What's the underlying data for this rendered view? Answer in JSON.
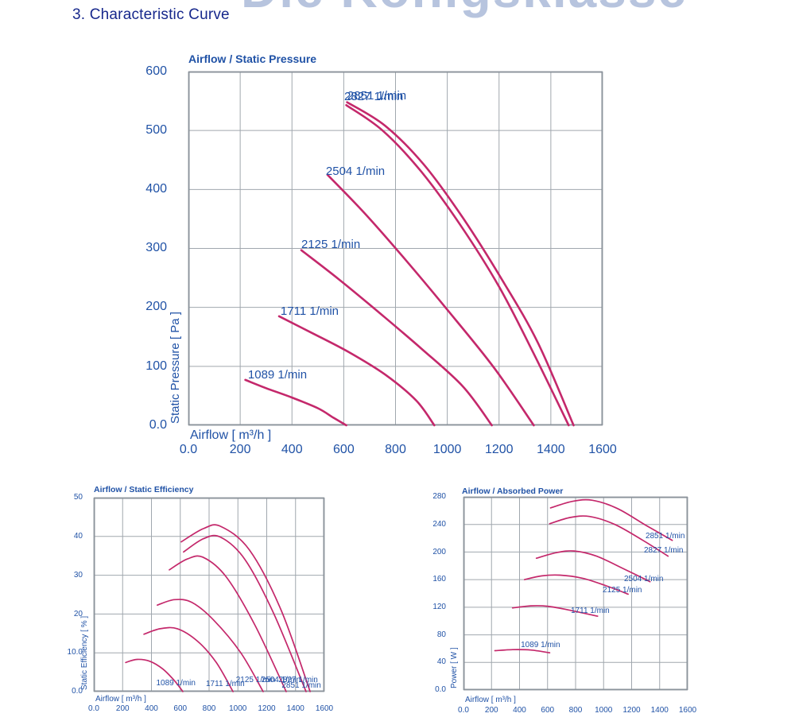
{
  "page": {
    "watermark": "Die Königsklasse",
    "title": "3.  Characteristic Curve"
  },
  "colors": {
    "curve": "#c4286b",
    "text_blue": "#2052a6",
    "title_navy": "#17288c",
    "grid": "#a0a7ae",
    "border": "#8b939b",
    "watermark": "#b7c4de"
  },
  "rpm_list": [
    "1089 1/min",
    "1711 1/min",
    "2125 1/min",
    "2504 1/min",
    "2827 1/min",
    "2851 1/min"
  ],
  "chart_data": [
    {
      "id": "pressure",
      "type": "line",
      "title": "Airflow / Static Pressure",
      "xlabel": "Airflow [ m³/h ]",
      "ylabel": "Static Pressure [ Pa ]",
      "xlim": [
        0,
        1600
      ],
      "ylim": [
        0,
        600
      ],
      "x_ticks": [
        "0.0",
        "200",
        "400",
        "600",
        "800",
        "1000",
        "1200",
        "1400",
        "1600"
      ],
      "y_ticks": [
        "0.0",
        "100",
        "200",
        "300",
        "400",
        "500",
        "600"
      ],
      "grid": true,
      "legend_position": "inline-labels",
      "series": [
        {
          "name": "1089",
          "label": "1089 1/min",
          "label_at": [
            230,
            97
          ],
          "points": [
            [
              220,
              77
            ],
            [
              300,
              63
            ],
            [
              400,
              47
            ],
            [
              500,
              29
            ],
            [
              560,
              13
            ],
            [
              610,
              0
            ]
          ]
        },
        {
          "name": "1711",
          "label": "1711 1/min",
          "label_at": [
            356,
            205
          ],
          "points": [
            [
              350,
              185
            ],
            [
              480,
              156
            ],
            [
              620,
              124
            ],
            [
              760,
              86
            ],
            [
              880,
              42
            ],
            [
              950,
              0
            ]
          ]
        },
        {
          "name": "2125",
          "label": "2125 1/min",
          "label_at": [
            436,
            318
          ],
          "points": [
            [
              436,
              297
            ],
            [
              580,
              248
            ],
            [
              740,
              190
            ],
            [
              900,
              130
            ],
            [
              1060,
              66
            ],
            [
              1172,
              0
            ]
          ]
        },
        {
          "name": "2504",
          "label": "2504 1/min",
          "label_at": [
            531,
            442
          ],
          "points": [
            [
              537,
              425
            ],
            [
              680,
              360
            ],
            [
              840,
              280
            ],
            [
              1000,
              196
            ],
            [
              1180,
              98
            ],
            [
              1334,
              0
            ]
          ]
        },
        {
          "name": "2827",
          "label": "2827 1/min",
          "label_at": [
            602,
            569
          ],
          "points": [
            [
              610,
              543
            ],
            [
              750,
              500
            ],
            [
              900,
              430
            ],
            [
              1050,
              340
            ],
            [
              1200,
              235
            ],
            [
              1330,
              125
            ],
            [
              1469,
              0
            ]
          ]
        },
        {
          "name": "2851",
          "label": "2851 1/min",
          "label_at": [
            614,
            570
          ],
          "points": [
            [
              613,
              548
            ],
            [
              760,
              508
            ],
            [
              910,
              442
            ],
            [
              1060,
              352
            ],
            [
              1210,
              248
            ],
            [
              1350,
              140
            ],
            [
              1488,
              0
            ]
          ]
        }
      ]
    },
    {
      "id": "efficiency",
      "type": "line",
      "title": "Airflow / Static Efficiency",
      "xlabel": "Airflow [ m³/h ]",
      "ylabel": "Static Efficiency [ % ]",
      "xlim": [
        0,
        1600
      ],
      "ylim": [
        0,
        50
      ],
      "x_ticks": [
        "0.0",
        "200",
        "400",
        "600",
        "800",
        "1000",
        "1200",
        "1400",
        "1600"
      ],
      "y_ticks": [
        "0.0",
        "10.0",
        "20",
        "30",
        "40",
        "50"
      ],
      "grid": true,
      "legend_position": "inline-labels",
      "series": [
        {
          "name": "1089",
          "label": "1089 1/min",
          "label_at": [
            433,
            3.2
          ],
          "points": [
            [
              221,
              7.5
            ],
            [
              300,
              8.3
            ],
            [
              390,
              7.8
            ],
            [
              480,
              5.8
            ],
            [
              560,
              2.8
            ],
            [
              618,
              0
            ]
          ]
        },
        {
          "name": "1711",
          "label": "1711 1/min",
          "label_at": [
            778,
            3.0
          ],
          "points": [
            [
              348,
              14.8
            ],
            [
              460,
              16.2
            ],
            [
              580,
              16.2
            ],
            [
              720,
              13.0
            ],
            [
              850,
              7.5
            ],
            [
              966,
              0
            ]
          ]
        },
        {
          "name": "2125",
          "label": "2125 1/min",
          "label_at": [
            986,
            4.1
          ],
          "points": [
            [
              441,
              22.3
            ],
            [
              560,
              23.7
            ],
            [
              680,
              23.0
            ],
            [
              830,
              18.5
            ],
            [
              1020,
              10.0
            ],
            [
              1175,
              0
            ]
          ]
        },
        {
          "name": "2504",
          "label": "2504 1/min",
          "label_at": [
            1162,
            4.1
          ],
          "points": [
            [
              524,
              31.4
            ],
            [
              650,
              34.2
            ],
            [
              760,
              34.6
            ],
            [
              920,
              29.5
            ],
            [
              1120,
              17.0
            ],
            [
              1335,
              0
            ]
          ]
        },
        {
          "name": "2827",
          "label": "2827 1/min",
          "label_at": [
            1282,
            4.1
          ],
          "points": [
            [
              623,
              36.0
            ],
            [
              760,
              39.4
            ],
            [
              880,
              39.8
            ],
            [
              1050,
              34.0
            ],
            [
              1250,
              20.0
            ],
            [
              1473,
              0
            ]
          ]
        },
        {
          "name": "2851",
          "label": "2851 1/min",
          "label_at": [
            1304,
            2.7
          ],
          "points": [
            [
              607,
              38.6
            ],
            [
              760,
              42.0
            ],
            [
              880,
              42.6
            ],
            [
              1080,
              36.5
            ],
            [
              1300,
              21.0
            ],
            [
              1501,
              0
            ]
          ]
        }
      ]
    },
    {
      "id": "power",
      "type": "line",
      "title": "Airflow / Absorbed Power",
      "xlabel": "Airflow [ m³/h ]",
      "ylabel": "Power [ W ]",
      "xlim": [
        0,
        1600
      ],
      "ylim": [
        0,
        280
      ],
      "x_ticks": [
        "0.0",
        "200",
        "400",
        "600",
        "800",
        "1000",
        "1200",
        "1400",
        "1600"
      ],
      "y_ticks": [
        "0.0",
        "40",
        "80",
        "120",
        "160",
        "200",
        "240",
        "280"
      ],
      "grid": true,
      "legend_position": "inline-labels",
      "series": [
        {
          "name": "1089",
          "label": "1089 1/min",
          "label_at": [
            409,
            71
          ],
          "points": [
            [
              224,
              57
            ],
            [
              350,
              58.5
            ],
            [
              480,
              58
            ],
            [
              615,
              54
            ]
          ]
        },
        {
          "name": "1711",
          "label": "1711 1/min",
          "label_at": [
            766,
            121
          ],
          "points": [
            [
              350,
              119
            ],
            [
              480,
              122
            ],
            [
              600,
              121.5
            ],
            [
              750,
              116
            ],
            [
              957,
              107
            ]
          ]
        },
        {
          "name": "2125",
          "label": "2125 1/min",
          "label_at": [
            993,
            151
          ],
          "points": [
            [
              436,
              160
            ],
            [
              560,
              165.5
            ],
            [
              690,
              166.5
            ],
            [
              850,
              162
            ],
            [
              1020,
              151
            ],
            [
              1175,
              139
            ]
          ]
        },
        {
          "name": "2504",
          "label": "2504 1/min",
          "label_at": [
            1146,
            167
          ],
          "points": [
            [
              520,
              191
            ],
            [
              660,
              199
            ],
            [
              790,
              201.5
            ],
            [
              950,
              194
            ],
            [
              1150,
              175
            ],
            [
              1331,
              157
            ]
          ]
        },
        {
          "name": "2827",
          "label": "2827 1/min",
          "label_at": [
            1288,
            209
          ],
          "points": [
            [
              615,
              241
            ],
            [
              760,
              250
            ],
            [
              900,
              251.5
            ],
            [
              1080,
              240
            ],
            [
              1280,
              217
            ],
            [
              1460,
              194
            ]
          ]
        },
        {
          "name": "2851",
          "label": "2851 1/min",
          "label_at": [
            1299,
            229
          ],
          "points": [
            [
              621,
              264
            ],
            [
              780,
              273.5
            ],
            [
              920,
              275
            ],
            [
              1100,
              263
            ],
            [
              1300,
              239
            ],
            [
              1490,
              217
            ]
          ]
        }
      ]
    }
  ]
}
